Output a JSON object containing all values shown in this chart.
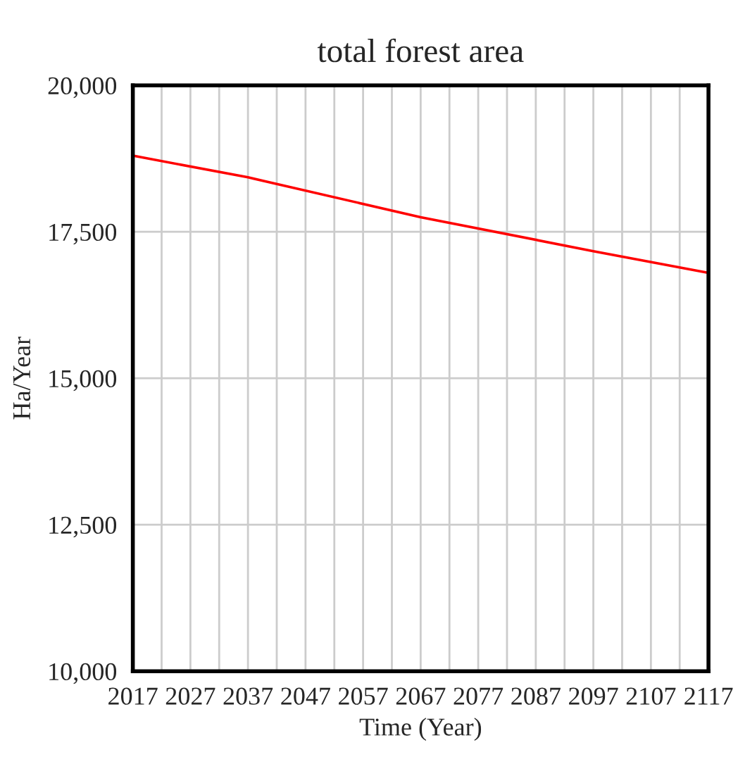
{
  "chart_data": {
    "type": "line",
    "title": "total forest area",
    "xlabel": "Time (Year)",
    "ylabel": "Ha/Year",
    "x": [
      2017,
      2037,
      2067,
      2097,
      2117
    ],
    "series": [
      {
        "color": "#ff0000",
        "values": [
          18800,
          18430,
          17750,
          17170,
          16800
        ]
      }
    ],
    "xlim": [
      2017,
      2117
    ],
    "xticks": [
      2017,
      {
        "value": 2022,
        "label": null
      },
      2027,
      {
        "value": 2032,
        "label": null
      },
      2037,
      {
        "value": 2042,
        "label": null
      },
      2047,
      {
        "value": 2052,
        "label": null
      },
      2057,
      {
        "value": 2062,
        "label": null
      },
      2067,
      {
        "value": 2072,
        "label": null
      },
      2077,
      {
        "value": 2082,
        "label": null
      },
      2087,
      {
        "value": 2092,
        "label": null
      },
      2097,
      {
        "value": 2102,
        "label": null
      },
      2107,
      {
        "value": 2112,
        "label": null
      },
      2117
    ],
    "ylim": [
      10000,
      20000
    ],
    "yticks": [
      {
        "value": 10000,
        "label": "10,000"
      },
      {
        "value": 12500,
        "label": "12,500"
      },
      {
        "value": 15000,
        "label": "15,000"
      },
      {
        "value": 17500,
        "label": "17,500"
      },
      {
        "value": 20000,
        "label": "20,000"
      }
    ],
    "grid": true,
    "legend": false,
    "marker": "none",
    "line_style": "solid"
  }
}
